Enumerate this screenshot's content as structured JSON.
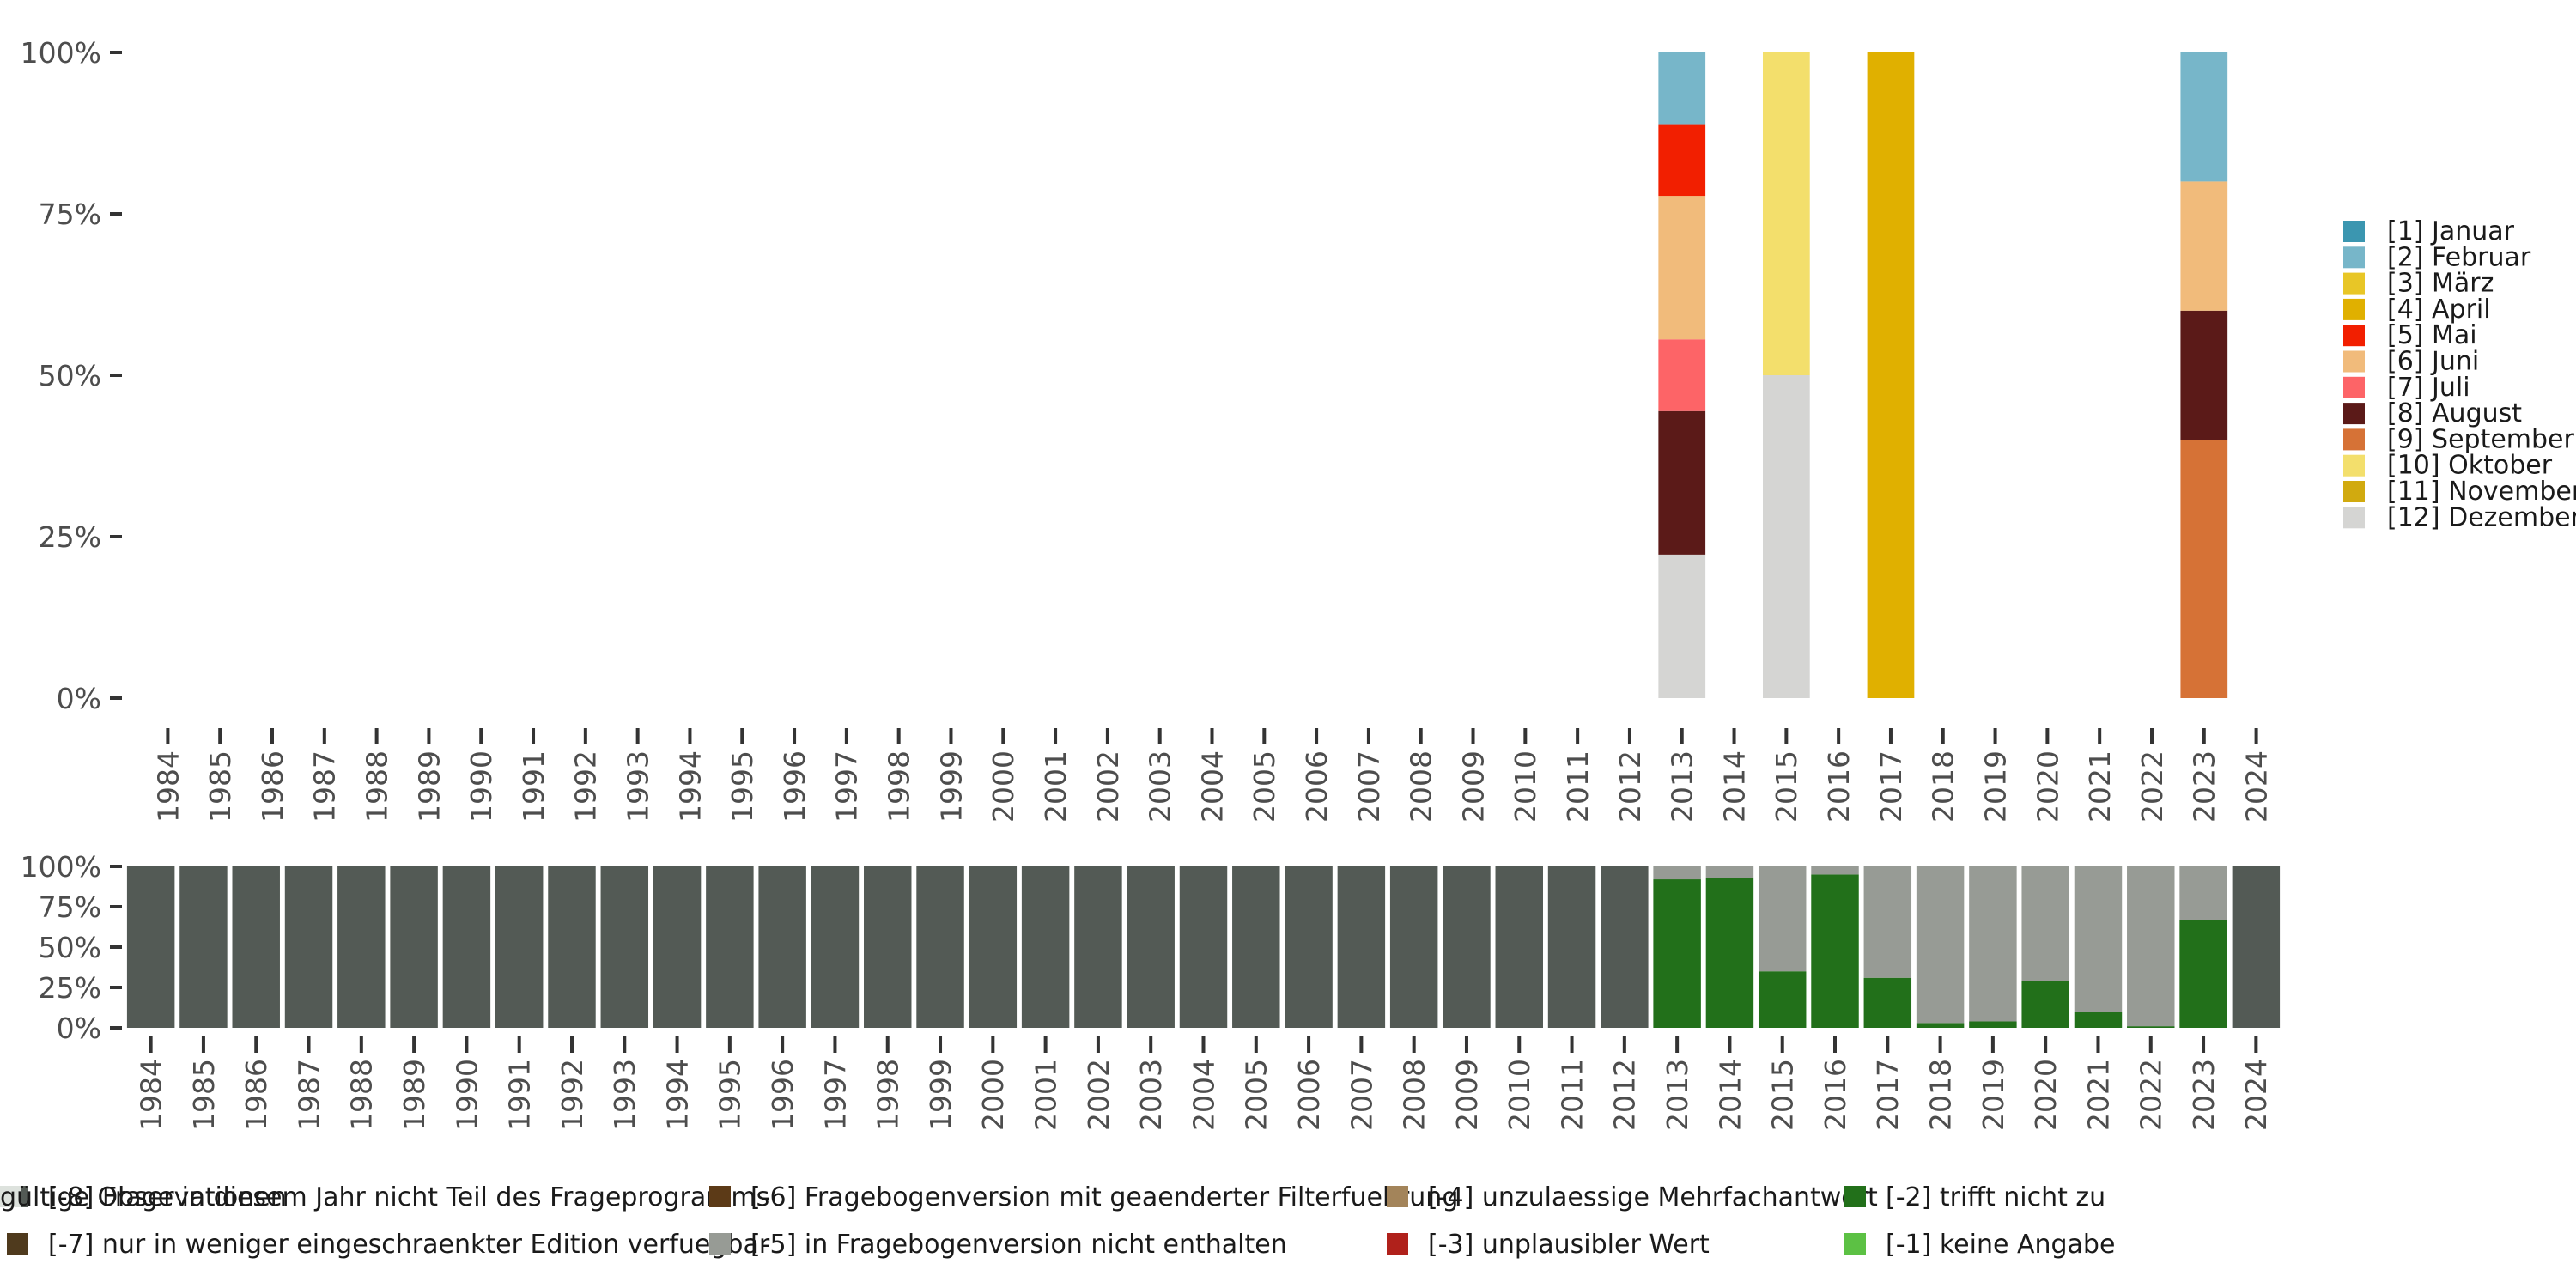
{
  "chart_data": [
    {
      "type": "bar",
      "stacked": true,
      "y_format": "percent",
      "ylim": [
        0,
        1
      ],
      "yticks": [
        "0%",
        "25%",
        "50%",
        "75%",
        "100%"
      ],
      "xlabel": "",
      "ylabel": "",
      "categories": [
        "1984",
        "1985",
        "1986",
        "1987",
        "1988",
        "1989",
        "1990",
        "1991",
        "1992",
        "1993",
        "1994",
        "1995",
        "1996",
        "1997",
        "1998",
        "1999",
        "2000",
        "2001",
        "2002",
        "2003",
        "2004",
        "2005",
        "2006",
        "2007",
        "2008",
        "2009",
        "2010",
        "2011",
        "2012",
        "2013",
        "2014",
        "2015",
        "2016",
        "2017",
        "2018",
        "2019",
        "2020",
        "2021",
        "2022",
        "2023",
        "2024"
      ],
      "legend_position": "right",
      "series": [
        {
          "name": "[1] Januar",
          "color": "#3b96b0",
          "values": {}
        },
        {
          "name": "[2] Februar",
          "color": "#77b6c9",
          "values": {
            "2013": 0.111,
            "2023": 0.2
          }
        },
        {
          "name": "[3] März",
          "color": "#e8c626",
          "values": {}
        },
        {
          "name": "[4] April",
          "color": "#e0b000",
          "values": {
            "2017": 1.0
          }
        },
        {
          "name": "[5] Mai",
          "color": "#f21f00",
          "values": {
            "2013": 0.111
          }
        },
        {
          "name": "[6] Juni",
          "color": "#f1bb7b",
          "values": {
            "2013": 0.222,
            "2023": 0.2
          }
        },
        {
          "name": "[7] Juli",
          "color": "#fd6467",
          "values": {
            "2013": 0.111
          }
        },
        {
          "name": "[8] August",
          "color": "#5b1a18",
          "values": {
            "2013": 0.222,
            "2023": 0.2
          }
        },
        {
          "name": "[9] September",
          "color": "#d67236",
          "values": {
            "2023": 0.4
          }
        },
        {
          "name": "[10] Oktober",
          "color": "#f3df6c",
          "values": {
            "2015": 0.5
          }
        },
        {
          "name": "[11] November",
          "color": "#d1aa0f",
          "values": {}
        },
        {
          "name": "[12] Dezember",
          "color": "#d5d5d3",
          "values": {
            "2013": 0.222,
            "2015": 0.5
          }
        }
      ]
    },
    {
      "type": "bar",
      "stacked": true,
      "y_format": "percent",
      "ylim": [
        0,
        1
      ],
      "yticks": [
        "0%",
        "25%",
        "50%",
        "75%",
        "100%"
      ],
      "xlabel": "",
      "ylabel": "",
      "categories": [
        "1984",
        "1985",
        "1986",
        "1987",
        "1988",
        "1989",
        "1990",
        "1991",
        "1992",
        "1993",
        "1994",
        "1995",
        "1996",
        "1997",
        "1998",
        "1999",
        "2000",
        "2001",
        "2002",
        "2003",
        "2004",
        "2005",
        "2006",
        "2007",
        "2008",
        "2009",
        "2010",
        "2011",
        "2012",
        "2013",
        "2014",
        "2015",
        "2016",
        "2017",
        "2018",
        "2019",
        "2020",
        "2021",
        "2022",
        "2023",
        "2024"
      ],
      "legend_position": "bottom",
      "series": [
        {
          "name": "[-8] Frage in diesem Jahr nicht Teil des Frageprogramms",
          "color": "#535a55",
          "values": {
            "1984": 1,
            "1985": 1,
            "1986": 1,
            "1987": 1,
            "1988": 1,
            "1989": 1,
            "1990": 1,
            "1991": 1,
            "1992": 1,
            "1993": 1,
            "1994": 1,
            "1995": 1,
            "1996": 1,
            "1997": 1,
            "1998": 1,
            "1999": 1,
            "2000": 1,
            "2001": 1,
            "2002": 1,
            "2003": 1,
            "2004": 1,
            "2005": 1,
            "2006": 1,
            "2007": 1,
            "2008": 1,
            "2009": 1,
            "2010": 1,
            "2011": 1,
            "2012": 1,
            "2024": 1
          }
        },
        {
          "name": "[-7] nur in weniger eingeschraenkter Edition verfuegbar",
          "color": "#4f3a1d",
          "values": {}
        },
        {
          "name": "[-6] Fragebogenversion mit geaenderter Filterfuehrung",
          "color": "#5c3a17",
          "values": {}
        },
        {
          "name": "[-5] in Fragebogenversion nicht enthalten",
          "color": "#979b95",
          "values": {
            "2013": 0.08,
            "2014": 0.07,
            "2015": 0.65,
            "2016": 0.05,
            "2017": 0.69,
            "2018": 0.97,
            "2019": 0.96,
            "2020": 0.71,
            "2021": 0.9,
            "2022": 0.99,
            "2023": 0.33
          }
        },
        {
          "name": "[-4] unzulaessige Mehrfachantwort",
          "color": "#a3845a",
          "values": {}
        },
        {
          "name": "[-3] unplausibler Wert",
          "color": "#b0211b",
          "values": {}
        },
        {
          "name": "[-2] trifft nicht zu",
          "color": "#22701a",
          "values": {
            "2013": 0.92,
            "2014": 0.93,
            "2015": 0.35,
            "2016": 0.95,
            "2017": 0.31,
            "2018": 0.03,
            "2019": 0.04,
            "2020": 0.29,
            "2021": 0.1,
            "2022": 0.01,
            "2023": 0.67
          }
        },
        {
          "name": "[-1] keine Angabe",
          "color": "#5cc144",
          "values": {}
        },
        {
          "name": "gültige Observationen",
          "color": "#dde2dd",
          "values": {}
        }
      ]
    }
  ]
}
